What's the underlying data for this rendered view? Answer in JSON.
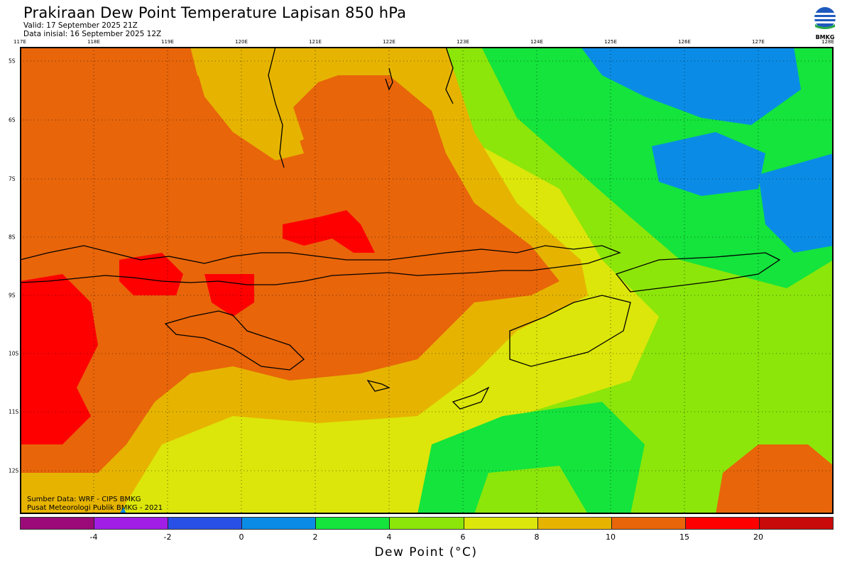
{
  "header": {
    "title": "Prakiraan Dew Point Temperature Lapisan 850 hPa",
    "valid": "Valid: 17 September 2025 21Z",
    "initial": "Data inisial: 16 September 2025 12Z"
  },
  "logo": {
    "text": "BMKG"
  },
  "map": {
    "lon_labels": [
      "117E",
      "118E",
      "119E",
      "120E",
      "121E",
      "122E",
      "123E",
      "124E",
      "125E",
      "126E",
      "127E",
      "128E"
    ],
    "lat_labels": [
      "5S",
      "6S",
      "7S",
      "8S",
      "9S",
      "10S",
      "11S",
      "12S"
    ],
    "colors": {
      "red": "#ff0000",
      "orange": "#e8650a",
      "amber": "#e6b400",
      "yellow": "#dce60a",
      "lime": "#8ce60a",
      "green": "#14e43c",
      "blue": "#0a8ce6",
      "ocean_border": "#000000"
    }
  },
  "source": {
    "line1": "Sumber Data: WRF - CIPS BMKG",
    "line2": "Pusat Meteorologi Publik BMKG - 2021"
  },
  "colorbar": {
    "colors": [
      "#9b0a78",
      "#a01ee6",
      "#2850e6",
      "#0a8ce6",
      "#14e43c",
      "#8ce60a",
      "#dce60a",
      "#e6b400",
      "#e8650a",
      "#ff0000",
      "#c80a0a"
    ],
    "labels": [
      "-4",
      "-2",
      "0",
      "2",
      "4",
      "6",
      "8",
      "10",
      "15",
      "20"
    ],
    "units": "Dew Point (°C)"
  }
}
